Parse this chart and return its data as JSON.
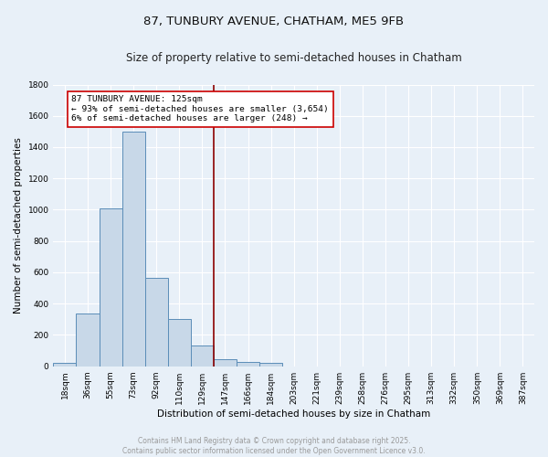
{
  "title_line1": "87, TUNBURY AVENUE, CHATHAM, ME5 9FB",
  "title_line2": "Size of property relative to semi-detached houses in Chatham",
  "xlabel": "Distribution of semi-detached houses by size in Chatham",
  "ylabel": "Number of semi-detached properties",
  "bin_labels": [
    "18sqm",
    "36sqm",
    "55sqm",
    "73sqm",
    "92sqm",
    "110sqm",
    "129sqm",
    "147sqm",
    "166sqm",
    "184sqm",
    "203sqm",
    "221sqm",
    "239sqm",
    "258sqm",
    "276sqm",
    "295sqm",
    "313sqm",
    "332sqm",
    "350sqm",
    "369sqm",
    "387sqm"
  ],
  "bar_values": [
    20,
    335,
    1010,
    1500,
    565,
    300,
    130,
    45,
    25,
    20,
    0,
    0,
    0,
    0,
    0,
    0,
    0,
    0,
    0,
    0,
    0
  ],
  "bar_color": "#c8d8e8",
  "bar_edge_color": "#5b8db8",
  "vline_x": 6.5,
  "vline_color": "#8b0000",
  "annotation_text": "87 TUNBURY AVENUE: 125sqm\n← 93% of semi-detached houses are smaller (3,654)\n6% of semi-detached houses are larger (248) →",
  "annotation_box_color": "#ffffff",
  "annotation_box_edge": "#cc0000",
  "ylim": [
    0,
    1800
  ],
  "yticks": [
    0,
    200,
    400,
    600,
    800,
    1000,
    1200,
    1400,
    1600,
    1800
  ],
  "bg_color": "#e8f0f8",
  "plot_bg_color": "#e8f0f8",
  "footer_text": "Contains HM Land Registry data © Crown copyright and database right 2025.\nContains public sector information licensed under the Open Government Licence v3.0.",
  "footer_color": "#999999",
  "grid_color": "#ffffff",
  "title_fontsize": 9.5,
  "subtitle_fontsize": 8.5,
  "tick_fontsize": 6.5,
  "ylabel_fontsize": 7.5,
  "xlabel_fontsize": 7.5,
  "footer_fontsize": 5.5,
  "annot_fontsize": 6.8
}
